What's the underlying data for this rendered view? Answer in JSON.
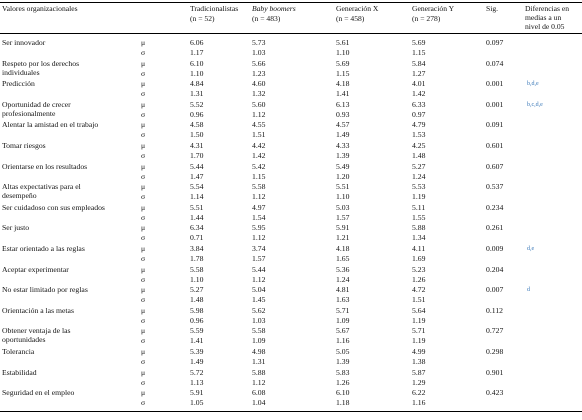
{
  "headers": {
    "col_values": "Valores organizacionales",
    "col_trad": "Tradicionalistas",
    "col_trad_n": "(n = 52)",
    "col_boom": "Baby boomers",
    "col_boom_n": "(n = 483)",
    "col_genx": "Generación X",
    "col_genx_n": "(n = 458)",
    "col_geny": "Generación Y",
    "col_geny_n": "(n = 278)",
    "col_sig": "Sig.",
    "col_diff": [
      "Diferencias en",
      "medias a un",
      "nivel de 0.05"
    ]
  },
  "rows": [
    {
      "label": [
        "Ser innovador"
      ],
      "mu": [
        "6.06",
        "5.73",
        "5.61",
        "5.69"
      ],
      "sigma": [
        "1.17",
        "1.03",
        "1.10",
        "1.15"
      ],
      "sig": "0.097",
      "diff": ""
    },
    {
      "label": [
        "Respeto por los derechos",
        "individuales"
      ],
      "mu": [
        "6.10",
        "5.66",
        "5.69",
        "5.84"
      ],
      "sigma": [
        "1.10",
        "1.23",
        "1.15",
        "1.27"
      ],
      "sig": "0.074",
      "diff": ""
    },
    {
      "label": [
        "Predicción"
      ],
      "mu": [
        "4.84",
        "4.60",
        "4.18",
        "4.01"
      ],
      "sigma": [
        "1.31",
        "1.32",
        "1.41",
        "1.42"
      ],
      "sig": "0.001",
      "diff": "b,d,e"
    },
    {
      "label": [
        "Oportunidad de crecer",
        "profesionalmente"
      ],
      "mu": [
        "5.52",
        "5.60",
        "6.13",
        "6.33"
      ],
      "sigma": [
        "0.96",
        "1.12",
        "0.93",
        "0.97"
      ],
      "sig": "0.001",
      "diff": "b,c,d,e"
    },
    {
      "label": [
        "Alentar la amistad en el trabajo"
      ],
      "mu": [
        "4.58",
        "4.55",
        "4.57",
        "4.79"
      ],
      "sigma": [
        "1.50",
        "1.51",
        "1.49",
        "1.53"
      ],
      "sig": "0.091",
      "diff": ""
    },
    {
      "label": [
        "Tomar riesgos"
      ],
      "mu": [
        "4.31",
        "4.42",
        "4.33",
        "4.25"
      ],
      "sigma": [
        "1.70",
        "1.42",
        "1.39",
        "1.48"
      ],
      "sig": "0.601",
      "diff": ""
    },
    {
      "label": [
        "Orientarse en los resultados"
      ],
      "mu": [
        "5.44",
        "5.42",
        "5.49",
        "5.27"
      ],
      "sigma": [
        "1.47",
        "1.15",
        "1.20",
        "1.24"
      ],
      "sig": "0.607",
      "diff": ""
    },
    {
      "label": [
        "Altas expectativas para el",
        "desempeño"
      ],
      "mu": [
        "5.54",
        "5.58",
        "5.51",
        "5.53"
      ],
      "sigma": [
        "1.14",
        "1.12",
        "1.10",
        "1.19"
      ],
      "sig": "0.537",
      "diff": ""
    },
    {
      "label": [
        "Ser cuidadoso con sus empleados"
      ],
      "mu": [
        "5.51",
        "4.97",
        "5.03",
        "5.11"
      ],
      "sigma": [
        "1.44",
        "1.54",
        "1.57",
        "1.55"
      ],
      "sig": "0.234",
      "diff": ""
    },
    {
      "label": [
        "Ser justo"
      ],
      "mu": [
        "6.34",
        "5.95",
        "5.91",
        "5.88"
      ],
      "sigma": [
        "0.71",
        "1.12",
        "1.21",
        "1.34"
      ],
      "sig": "0.261",
      "diff": ""
    },
    {
      "label": [
        "Estar orientado a las reglas"
      ],
      "mu": [
        "3.84",
        "3.74",
        "4.18",
        "4.11"
      ],
      "sigma": [
        "1.78",
        "1.57",
        "1.65",
        "1.69"
      ],
      "sig": "0.009",
      "diff": "d,e"
    },
    {
      "label": [
        "Aceptar experimentar"
      ],
      "mu": [
        "5.58",
        "5.44",
        "5.36",
        "5.23"
      ],
      "sigma": [
        "1.10",
        "1.12",
        "1.24",
        "1.26"
      ],
      "sig": "0.204",
      "diff": ""
    },
    {
      "label": [
        "No estar limitado por reglas"
      ],
      "mu": [
        "5.27",
        "5.04",
        "4.81",
        "4.72"
      ],
      "sigma": [
        "1.48",
        "1.45",
        "1.63",
        "1.51"
      ],
      "sig": "0.007",
      "diff": "d"
    },
    {
      "label": [
        "Orientación a las metas"
      ],
      "mu": [
        "5.98",
        "5.62",
        "5.71",
        "5.64"
      ],
      "sigma": [
        "0.96",
        "1.03",
        "1.09",
        "1.19"
      ],
      "sig": "0.112",
      "diff": ""
    },
    {
      "label": [
        "Obtener ventaja de las",
        "oportunidades"
      ],
      "mu": [
        "5.59",
        "5.58",
        "5.67",
        "5.71"
      ],
      "sigma": [
        "1.41",
        "1.09",
        "1.16",
        "1.19"
      ],
      "sig": "0.727",
      "diff": ""
    },
    {
      "label": [
        "Tolerancia"
      ],
      "mu": [
        "5.39",
        "4.98",
        "5.05",
        "4.99"
      ],
      "sigma": [
        "1.49",
        "1.31",
        "1.39",
        "1.38"
      ],
      "sig": "0.298",
      "diff": ""
    },
    {
      "label": [
        "Estabilidad"
      ],
      "mu": [
        "5.72",
        "5.88",
        "5.83",
        "5.87"
      ],
      "sigma": [
        "1.13",
        "1.12",
        "1.26",
        "1.29"
      ],
      "sig": "0.901",
      "diff": ""
    },
    {
      "label": [
        "Seguridad en el empleo"
      ],
      "mu": [
        "5.91",
        "6.08",
        "6.10",
        "6.22"
      ],
      "sigma": [
        "1.05",
        "1.04",
        "1.18",
        "1.16"
      ],
      "sig": "0.423",
      "diff": ""
    }
  ],
  "symbols": {
    "mu": "μ",
    "sigma": "σ"
  }
}
